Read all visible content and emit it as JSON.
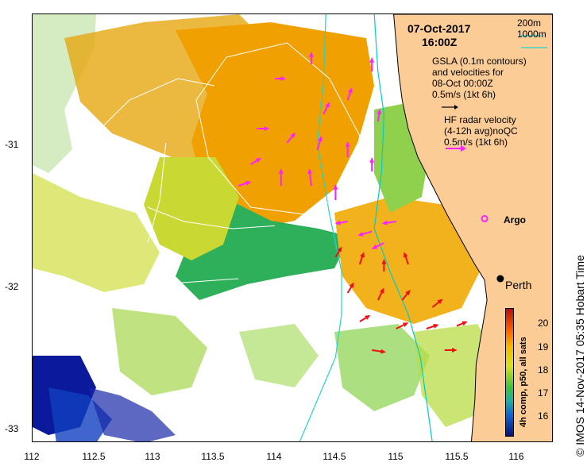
{
  "title": {
    "date": "07-Oct-2017",
    "time": "16:00Z"
  },
  "legend": {
    "depth_contours": [
      "200m",
      "1000m"
    ],
    "gsla_text": [
      "GSLA (0.1m contours)",
      "and velocities for",
      "08-Oct 00:00Z",
      "0.5m/s (1kt 6h)"
    ],
    "hf_text": [
      "HF radar velocity",
      "(4-12h avg)noQC",
      "0.5m/s (1kt 6h)"
    ],
    "argo_label": "Argo",
    "city_label": "Perth"
  },
  "axes": {
    "x_ticks": [
      "112",
      "112.5",
      "113",
      "113.5",
      "114",
      "114.5",
      "115",
      "115.5",
      "116"
    ],
    "y_ticks": [
      "-31",
      "-32",
      "-33"
    ],
    "x_range": [
      112,
      116.3
    ],
    "y_range": [
      -33.1,
      -30.1
    ]
  },
  "colorbar": {
    "title": "4h comp, p50, all sats",
    "ticks": [
      "20",
      "19",
      "18",
      "17",
      "16"
    ],
    "range": [
      15.2,
      20.6
    ]
  },
  "side_caption": "© IMOS 14-Nov-2017 05:35 Hobart Time",
  "colors": {
    "land": "#fccc96",
    "contour200": "#00cccc",
    "contour1000": "#22d4cc",
    "gsla_arrow": "#000000",
    "hf_arrow_offshore": "#ff22ff",
    "hf_arrow_inshore": "#ee1111",
    "argo": "#ff22ff"
  },
  "geo": {
    "perth": {
      "lon": 115.86,
      "lat": -31.95
    },
    "argo": {
      "lon": 115.73,
      "lat": -31.53
    },
    "coastline": [
      [
        114.98,
        -30.1
      ],
      [
        115.0,
        -30.3
      ],
      [
        115.02,
        -30.5
      ],
      [
        115.05,
        -30.7
      ],
      [
        115.1,
        -30.9
      ],
      [
        115.18,
        -31.1
      ],
      [
        115.3,
        -31.3
      ],
      [
        115.42,
        -31.5
      ],
      [
        115.55,
        -31.7
      ],
      [
        115.65,
        -31.85
      ],
      [
        115.73,
        -31.96
      ],
      [
        115.75,
        -32.1
      ],
      [
        115.7,
        -32.35
      ],
      [
        115.66,
        -32.55
      ],
      [
        115.65,
        -32.8
      ],
      [
        115.62,
        -33.1
      ]
    ],
    "contour200": [
      [
        114.82,
        -30.1
      ],
      [
        114.85,
        -30.5
      ],
      [
        114.9,
        -30.8
      ],
      [
        114.88,
        -31.2
      ],
      [
        114.82,
        -31.6
      ],
      [
        114.95,
        -31.9
      ],
      [
        115.1,
        -32.2
      ],
      [
        115.2,
        -32.5
      ],
      [
        115.25,
        -32.8
      ],
      [
        115.3,
        -33.1
      ]
    ],
    "contour1000": [
      [
        114.42,
        -30.1
      ],
      [
        114.4,
        -30.6
      ],
      [
        114.35,
        -31.0
      ],
      [
        114.45,
        -31.5
      ],
      [
        114.55,
        -31.9
      ],
      [
        114.55,
        -32.2
      ],
      [
        114.5,
        -32.5
      ],
      [
        114.35,
        -32.8
      ],
      [
        114.2,
        -33.1
      ]
    ],
    "gsla_contours": [
      [
        [
          112.5,
          -30.95
        ],
        [
          112.8,
          -30.7
        ],
        [
          113.2,
          -30.55
        ],
        [
          113.5,
          -30.6
        ]
      ],
      [
        [
          113.6,
          -30.4
        ],
        [
          113.35,
          -30.7
        ],
        [
          113.45,
          -31.1
        ],
        [
          113.8,
          -31.45
        ],
        [
          114.25,
          -31.5
        ],
        [
          114.6,
          -31.35
        ],
        [
          114.7,
          -30.95
        ],
        [
          114.45,
          -30.55
        ],
        [
          114.1,
          -30.3
        ],
        [
          113.6,
          -30.4
        ]
      ],
      [
        [
          112.95,
          -31.45
        ],
        [
          113.25,
          -31.55
        ],
        [
          113.65,
          -31.6
        ],
        [
          114.0,
          -31.58
        ]
      ],
      [
        [
          112.8,
          -32.15
        ],
        [
          113.2,
          -31.98
        ],
        [
          113.7,
          -31.95
        ]
      ],
      [
        [
          113.1,
          -31.0
        ],
        [
          113.05,
          -31.4
        ],
        [
          112.95,
          -31.7
        ]
      ]
    ],
    "hf_arrows_offshore": [
      [
        114.0,
        -30.55,
        5,
        0
      ],
      [
        114.3,
        -30.45,
        0,
        -6
      ],
      [
        114.6,
        -30.7,
        2,
        -6
      ],
      [
        113.85,
        -30.9,
        6,
        0
      ],
      [
        114.1,
        -31.0,
        4,
        -5
      ],
      [
        114.35,
        -31.05,
        2,
        -7
      ],
      [
        114.6,
        -31.1,
        0,
        -8
      ],
      [
        113.8,
        -31.15,
        5,
        -3
      ],
      [
        114.05,
        -31.3,
        0,
        -9
      ],
      [
        114.3,
        -31.3,
        -1,
        -9
      ],
      [
        114.5,
        -31.4,
        0,
        -8
      ],
      [
        114.8,
        -30.5,
        0,
        -7
      ],
      [
        114.85,
        -30.85,
        1,
        -6
      ],
      [
        114.8,
        -31.2,
        0,
        -7
      ],
      [
        114.4,
        -30.8,
        3,
        -6
      ],
      [
        113.7,
        -31.3,
        6,
        -2
      ],
      [
        114.6,
        -31.55,
        -6,
        1
      ],
      [
        114.8,
        -31.62,
        -7,
        2
      ],
      [
        115.0,
        -31.55,
        -7,
        1
      ],
      [
        114.9,
        -31.7,
        -6,
        3
      ]
    ],
    "hf_arrows_inshore": [
      [
        114.5,
        -31.8,
        3,
        -5
      ],
      [
        114.7,
        -31.85,
        2,
        -6
      ],
      [
        114.9,
        -31.9,
        0,
        -6
      ],
      [
        115.1,
        -31.85,
        -2,
        -6
      ],
      [
        114.6,
        -32.05,
        3,
        -5
      ],
      [
        114.85,
        -32.1,
        3,
        -6
      ],
      [
        115.05,
        -32.1,
        4,
        -5
      ],
      [
        115.3,
        -32.15,
        5,
        -4
      ],
      [
        115.0,
        -32.3,
        6,
        -3
      ],
      [
        115.25,
        -32.3,
        6,
        -2
      ],
      [
        115.5,
        -32.28,
        5,
        -2
      ],
      [
        114.7,
        -32.25,
        5,
        -3
      ],
      [
        114.8,
        -32.45,
        7,
        1
      ],
      [
        115.4,
        -32.45,
        6,
        0
      ]
    ]
  }
}
